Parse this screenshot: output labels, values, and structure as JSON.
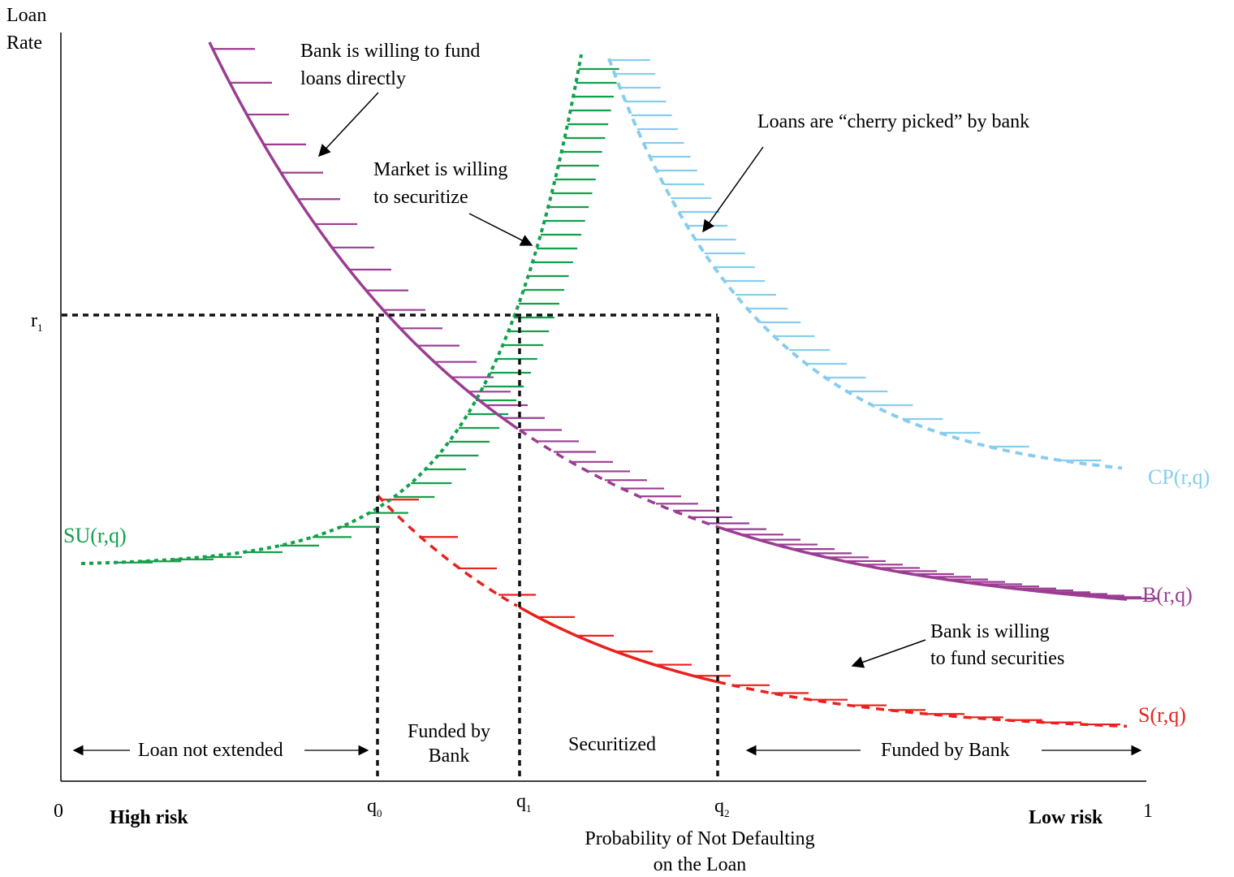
{
  "axes": {
    "y_label_line1": "Loan",
    "y_label_line2": "Rate",
    "x_label_line1": "Probability of Not Defaulting",
    "x_label_line2": "on the Loan",
    "origin": "0",
    "x_end": "1",
    "left_end": "High risk",
    "right_end": "Low risk"
  },
  "markers": {
    "r": "r",
    "r_sub": "1",
    "q0": "q",
    "q0_sub": "0",
    "q1": "q",
    "q1_sub": "1",
    "q2": "q",
    "q2_sub": "2"
  },
  "curves": {
    "B": {
      "label": "B(r,q)",
      "color": "#9b3d92"
    },
    "S": {
      "label": "S(r,q)",
      "color": "#e8211e"
    },
    "SU": {
      "label": "SU(r,q)",
      "color": "#12a04c"
    },
    "CP": {
      "label": "CP(r,q)",
      "color": "#87cdee"
    }
  },
  "annotations": {
    "bank_fund_loans_1": "Bank is willing to fund",
    "bank_fund_loans_2": "loans directly",
    "market_securitize_1": "Market is willing",
    "market_securitize_2": "to securitize",
    "cherry_picked": "Loans are “cherry picked” by bank",
    "bank_fund_securities_1": "Bank is willing",
    "bank_fund_securities_2": "to fund securities"
  },
  "regions": {
    "not_extended": "Loan not extended",
    "funded_bank_1_line1": "Funded by",
    "funded_bank_1_line2": "Bank",
    "securitized": "Securitized",
    "funded_bank_2": "Funded by Bank"
  }
}
